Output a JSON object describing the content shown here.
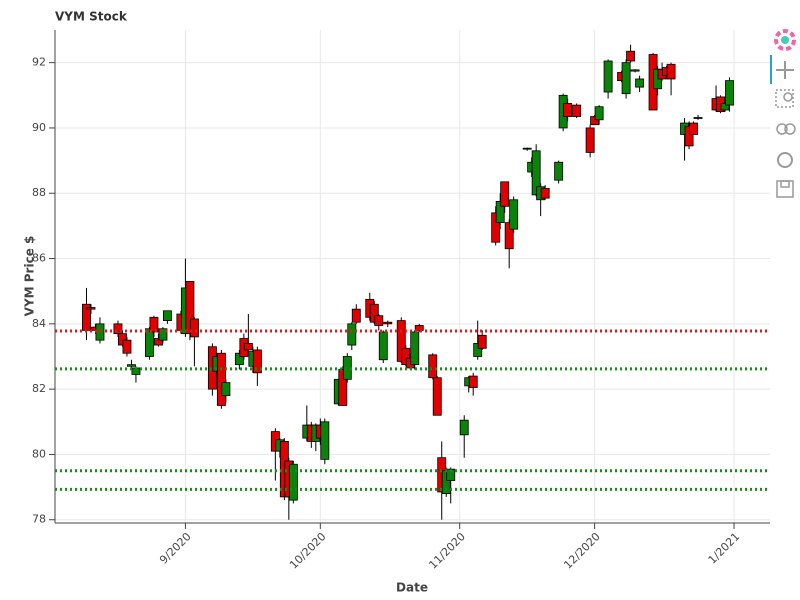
{
  "chart_data": {
    "type": "candlestick",
    "title": "VYM Stock",
    "x_label": "Date",
    "y_label": "VYM Price $",
    "x": [
      223,
      224,
      225,
      226,
      230,
      231,
      232,
      233,
      234,
      237,
      238,
      239,
      240,
      241,
      244,
      245,
      246,
      247,
      251,
      252,
      253,
      254,
      257,
      258,
      259,
      260,
      261,
      265,
      266,
      267,
      268,
      269,
      272,
      273,
      274,
      275,
      276,
      279,
      280,
      281,
      282,
      283,
      286,
      287,
      288,
      289,
      290,
      293,
      294,
      295,
      296,
      297,
      300,
      301,
      302,
      303,
      304,
      307,
      308,
      309,
      310,
      311,
      314,
      315,
      316,
      317,
      318,
      321,
      322,
      323,
      324,
      325,
      328,
      329,
      330,
      332,
      335,
      336,
      337,
      339,
      342,
      343,
      344,
      345,
      346,
      349,
      350,
      351,
      352,
      353,
      356,
      357,
      358,
      359,
      363,
      364,
      365,
      366
    ],
    "open": [
      84.6,
      84.5,
      83.9,
      83.5,
      84.0,
      83.7,
      83.5,
      82.7,
      82.45,
      83.0,
      84.2,
      83.55,
      83.5,
      84.1,
      84.3,
      83.7,
      85.3,
      84.15,
      83.3,
      82.55,
      83.1,
      81.8,
      82.75,
      83.55,
      83.4,
      82.7,
      83.2,
      80.7,
      80.1,
      80.4,
      79.8,
      78.6,
      80.5,
      80.9,
      80.4,
      80.9,
      79.85,
      81.55,
      82.6,
      82.3,
      83.35,
      84.45,
      84.75,
      84.6,
      84.25,
      82.9,
      84.05,
      84.1,
      83.25,
      82.95,
      82.75,
      83.95,
      83.05,
      82.35,
      79.9,
      78.8,
      79.2,
      80.6,
      82.1,
      82.4,
      83.0,
      83.65,
      87.4,
      87.1,
      88.35,
      87.1,
      86.9,
      89.35,
      88.65,
      87.95,
      87.8,
      88.15,
      88.4,
      90.0,
      90.75,
      90.7,
      90.0,
      90.35,
      90.25,
      91.1,
      91.7,
      91.05,
      92.35,
      91.74,
      91.25,
      92.25,
      91.2,
      91.8,
      91.85,
      91.95,
      89.8,
      90.05,
      90.15,
      90.3,
      90.9,
      90.95,
      90.55,
      90.7
    ],
    "high": [
      85.1,
      84.6,
      84.0,
      84.2,
      84.1,
      83.8,
      83.6,
      82.9,
      82.7,
      83.9,
      84.25,
      83.7,
      83.9,
      84.4,
      84.4,
      86.0,
      85.3,
      84.2,
      83.4,
      83.1,
      83.2,
      82.3,
      83.2,
      83.7,
      84.3,
      83.3,
      83.3,
      80.8,
      80.5,
      80.5,
      79.9,
      79.8,
      81.5,
      81.0,
      80.95,
      81.1,
      81.1,
      82.3,
      82.7,
      83.1,
      84.05,
      84.6,
      84.95,
      84.7,
      84.3,
      83.8,
      84.1,
      84.2,
      83.35,
      83.1,
      83.8,
      84.0,
      83.1,
      82.4,
      80.4,
      79.6,
      79.6,
      81.2,
      82.4,
      82.5,
      84.1,
      83.8,
      87.6,
      88.0,
      88.35,
      87.2,
      87.9,
      89.4,
      89.1,
      89.5,
      88.3,
      88.25,
      89.0,
      91.05,
      90.9,
      90.75,
      90.1,
      90.4,
      90.7,
      92.1,
      91.75,
      92.1,
      92.55,
      91.8,
      91.6,
      92.3,
      91.9,
      92.0,
      91.9,
      92.0,
      90.3,
      90.2,
      90.2,
      90.4,
      91.3,
      91.0,
      90.8,
      91.55
    ],
    "low": [
      83.5,
      84.3,
      83.7,
      83.4,
      83.6,
      83.3,
      83.0,
      82.6,
      82.2,
      82.9,
      83.6,
      83.3,
      83.4,
      84.0,
      83.7,
      83.6,
      83.5,
      82.7,
      81.8,
      82.4,
      81.4,
      81.6,
      82.6,
      82.9,
      83.1,
      82.5,
      82.1,
      79.2,
      79.9,
      78.6,
      78.0,
      78.5,
      80.4,
      80.2,
      80.1,
      80.3,
      79.7,
      81.5,
      81.5,
      82.2,
      83.2,
      84.0,
      84.1,
      84.0,
      83.8,
      82.8,
      83.9,
      82.8,
      82.7,
      82.6,
      82.6,
      83.75,
      82.3,
      81.2,
      78.0,
      78.7,
      78.5,
      79.9,
      81.9,
      81.8,
      82.9,
      83.2,
      86.4,
      86.9,
      87.4,
      85.7,
      86.8,
      89.3,
      88.5,
      87.9,
      87.3,
      87.8,
      88.3,
      89.9,
      90.2,
      90.3,
      89.1,
      90.1,
      90.1,
      90.9,
      91.4,
      90.9,
      92.0,
      91.7,
      91.1,
      90.55,
      91.0,
      91.45,
      91.55,
      91.0,
      89.0,
      89.35,
      89.8,
      90.25,
      90.5,
      90.45,
      90.5,
      90.5
    ],
    "close": [
      83.8,
      84.45,
      83.8,
      84.0,
      83.7,
      83.35,
      83.1,
      82.75,
      82.65,
      83.85,
      83.75,
      83.35,
      83.85,
      84.4,
      83.8,
      85.1,
      83.7,
      83.6,
      82.0,
      83.0,
      81.5,
      82.2,
      83.1,
      83.0,
      83.2,
      83.15,
      82.5,
      80.1,
      80.45,
      78.7,
      78.7,
      79.7,
      80.9,
      80.4,
      80.9,
      80.5,
      81.0,
      82.3,
      81.5,
      83.0,
      84.0,
      84.05,
      84.2,
      84.05,
      83.95,
      83.75,
      84.0,
      82.85,
      82.75,
      82.65,
      83.75,
      83.8,
      82.35,
      81.2,
      78.85,
      79.5,
      79.55,
      81.05,
      82.35,
      82.05,
      83.4,
      83.25,
      86.5,
      87.75,
      87.6,
      86.3,
      87.8,
      89.38,
      88.95,
      89.3,
      88.2,
      87.85,
      88.95,
      91.0,
      90.35,
      90.35,
      89.25,
      90.1,
      90.65,
      92.05,
      91.45,
      92.0,
      92.05,
      91.78,
      91.5,
      90.55,
      91.8,
      91.5,
      91.6,
      91.5,
      90.15,
      89.45,
      89.8,
      90.32,
      90.55,
      90.5,
      90.75,
      91.45
    ],
    "increasing_color": "#0b830b",
    "decreasing_color": "#e10000",
    "hlines": [
      {
        "value": 83.78,
        "color": "#e31a1c"
      },
      {
        "value": 82.62,
        "color": "#1a8a1a"
      },
      {
        "value": 79.5,
        "color": "#1a8a1a"
      },
      {
        "value": 78.93,
        "color": "#1a8a1a"
      }
    ],
    "xlim": [
      216,
      375
    ],
    "xticks": [
      {
        "value": 245,
        "label": "9/2020"
      },
      {
        "value": 275,
        "label": "10/2020"
      },
      {
        "value": 306,
        "label": "11/2020"
      },
      {
        "value": 336,
        "label": "12/2020"
      },
      {
        "value": 367,
        "label": "1/2021"
      }
    ],
    "ylim": [
      77.9,
      93.0
    ],
    "yticks": [
      78,
      80,
      82,
      84,
      86,
      88,
      90,
      92
    ],
    "grid": true
  }
}
